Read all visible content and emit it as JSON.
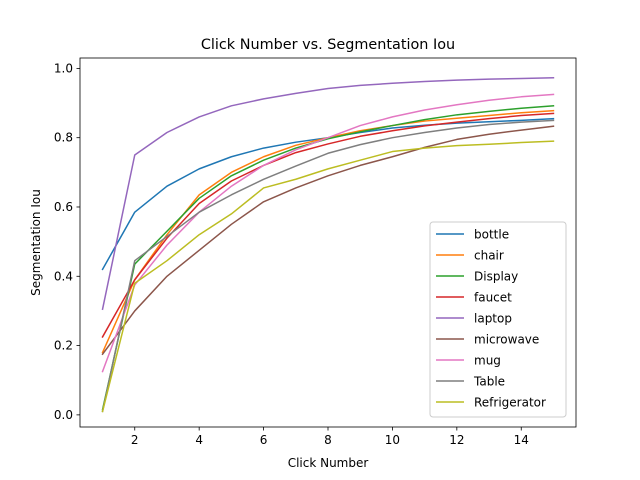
{
  "chart_data": {
    "type": "line",
    "title": "Click Number vs. Segmentation Iou",
    "xlabel": "Click Number",
    "ylabel": "Segmentation Iou",
    "xlim": [
      0.3,
      15.7
    ],
    "ylim": [
      -0.035,
      1.03
    ],
    "xticks": [
      2,
      4,
      6,
      8,
      10,
      12,
      14
    ],
    "yticks": [
      0.0,
      0.2,
      0.4,
      0.6,
      0.8,
      1.0
    ],
    "xtick_labels": [
      "2",
      "4",
      "6",
      "8",
      "10",
      "12",
      "14"
    ],
    "ytick_labels": [
      "0.0",
      "0.2",
      "0.4",
      "0.6",
      "0.8",
      "1.0"
    ],
    "grid": false,
    "legend_position": "lower-right",
    "x": [
      1,
      2,
      3,
      4,
      5,
      6,
      7,
      8,
      9,
      10,
      11,
      12,
      13,
      14,
      15
    ],
    "series": [
      {
        "name": "bottle",
        "color": "#1f77b4",
        "values": [
          0.42,
          0.585,
          0.66,
          0.71,
          0.745,
          0.77,
          0.787,
          0.8,
          0.815,
          0.828,
          0.836,
          0.842,
          0.846,
          0.85,
          0.855
        ]
      },
      {
        "name": "chair",
        "color": "#ff7f0e",
        "values": [
          0.18,
          0.39,
          0.52,
          0.635,
          0.7,
          0.745,
          0.778,
          0.8,
          0.82,
          0.835,
          0.848,
          0.856,
          0.864,
          0.872,
          0.878
        ]
      },
      {
        "name": "Display",
        "color": "#2ca02c",
        "values": [
          0.015,
          0.435,
          0.53,
          0.625,
          0.69,
          0.735,
          0.77,
          0.797,
          0.817,
          0.835,
          0.852,
          0.866,
          0.876,
          0.885,
          0.892
        ]
      },
      {
        "name": "faucet",
        "color": "#d62728",
        "values": [
          0.225,
          0.39,
          0.51,
          0.61,
          0.675,
          0.72,
          0.757,
          0.782,
          0.804,
          0.82,
          0.834,
          0.845,
          0.855,
          0.864,
          0.87
        ]
      },
      {
        "name": "laptop",
        "color": "#9467bd",
        "values": [
          0.305,
          0.75,
          0.815,
          0.86,
          0.892,
          0.912,
          0.928,
          0.942,
          0.951,
          0.957,
          0.962,
          0.966,
          0.969,
          0.971,
          0.973
        ]
      },
      {
        "name": "microwave",
        "color": "#8c564b",
        "values": [
          0.175,
          0.3,
          0.4,
          0.475,
          0.55,
          0.615,
          0.655,
          0.69,
          0.72,
          0.745,
          0.772,
          0.795,
          0.81,
          0.822,
          0.833
        ]
      },
      {
        "name": "mug",
        "color": "#e377c2",
        "values": [
          0.125,
          0.375,
          0.49,
          0.585,
          0.66,
          0.72,
          0.765,
          0.8,
          0.835,
          0.86,
          0.88,
          0.895,
          0.908,
          0.918,
          0.925
        ]
      },
      {
        "name": "Table",
        "color": "#7f7f7f",
        "values": [
          0.01,
          0.445,
          0.515,
          0.585,
          0.635,
          0.68,
          0.718,
          0.755,
          0.78,
          0.8,
          0.815,
          0.828,
          0.838,
          0.845,
          0.85
        ]
      },
      {
        "name": "Refrigerator",
        "color": "#bcbd22",
        "values": [
          0.01,
          0.38,
          0.445,
          0.52,
          0.58,
          0.655,
          0.68,
          0.71,
          0.735,
          0.76,
          0.77,
          0.777,
          0.781,
          0.786,
          0.79
        ]
      }
    ]
  }
}
